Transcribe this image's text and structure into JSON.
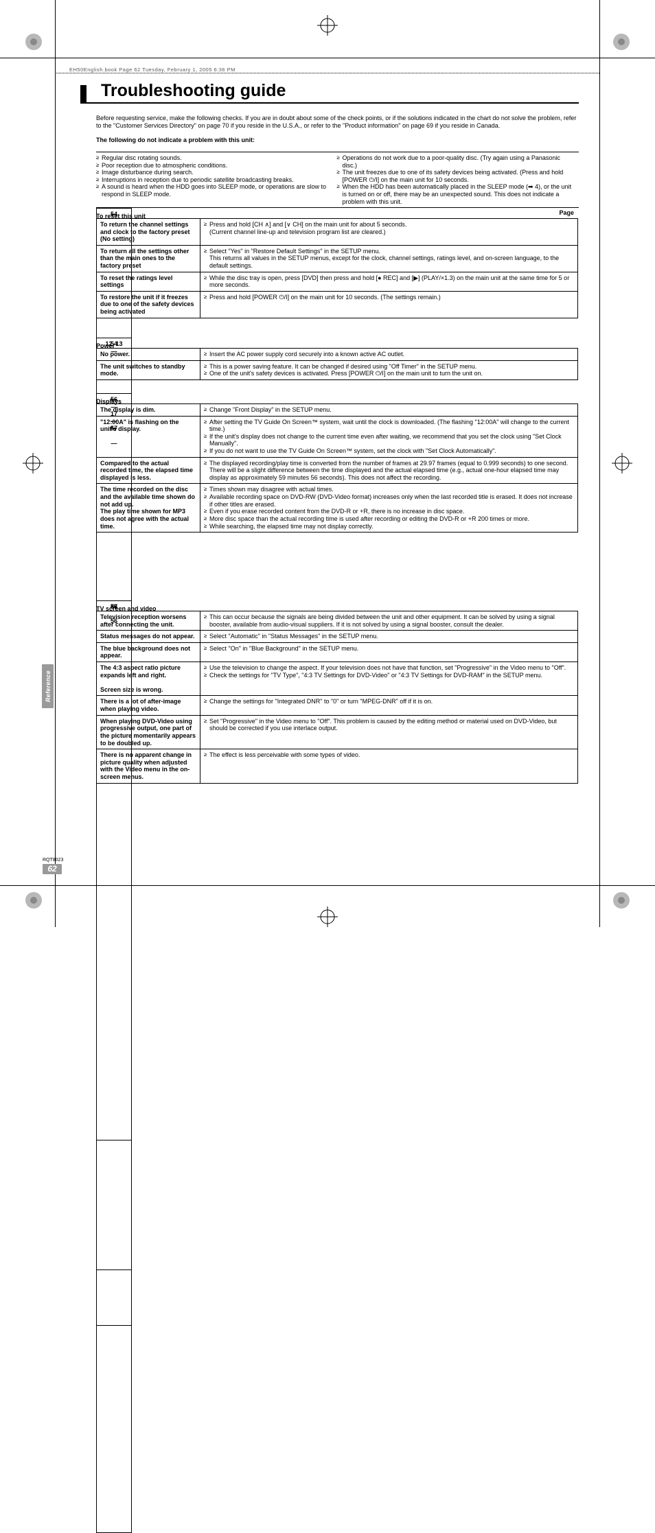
{
  "meta": {
    "headerLine": "EH50English.book  Page 62  Tuesday, February 1, 2005  6:36 PM",
    "title": "Troubleshooting guide",
    "sideTab": "Reference",
    "rqt": "RQT8023",
    "pageNum": "62"
  },
  "intro": {
    "p1": "Before requesting service, make the following checks. If you are in doubt about some of the check points, or if the solutions indicated in the chart do not solve the problem, refer to the \"Customer Services Directory\" on page 70 if you reside in the U.S.A., or refer to the \"Product information\" on page 69 if you reside in Canada.",
    "subhead": "The following do not indicate a problem with this unit:"
  },
  "notProblems": {
    "left": [
      "Regular disc rotating sounds.",
      "Poor reception due to atmospheric conditions.",
      "Image disturbance during search.",
      "Interruptions in reception due to periodic satellite broadcasting breaks.",
      "A sound is heard when the HDD goes into SLEEP mode, or operations are slow to respond in SLEEP mode."
    ],
    "right": [
      "Operations do not work due to a poor-quality disc. (Try again using a Panasonic disc.)",
      "The unit freezes due to one of its safety devices being activated. (Press and hold [POWER ⏻/I] on the main unit for 10 seconds.",
      "When the HDD has been automatically placed in the SLEEP mode (➡ 4), or the unit is turned on or off, there may be an unexpected sound. This does not indicate a problem with this unit."
    ]
  },
  "resetSection": {
    "title": "To reset this unit",
    "pageLabel": "Page",
    "rows": [
      {
        "symptom": "To return the channel settings and clock to the factory preset (No setting)",
        "actions": [
          "Press and hold [CH ∧] and [∨ CH] on the main unit for about 5 seconds.\n(Current channel line-up and television program list are cleared.)"
        ],
        "page": "—"
      },
      {
        "symptom": "To return all the settings other than the main ones to the factory preset",
        "actions": [
          "Select \"Yes\" in \"Restore Default Settings\" in the SETUP menu.\nThis returns all values in the SETUP menus, except for the clock, channel settings, ratings level, and on-screen language, to the default settings."
        ],
        "page": "54"
      },
      {
        "symptom": "To reset the ratings level settings",
        "actions": [
          "While the disc tray is open, press [DVD] then press and hold [● REC] and [▶] (PLAY/×1.3) on the main unit at the same time for 5 or more seconds."
        ],
        "page": "—"
      },
      {
        "symptom": "To restore the unit if it freezes due to one of the safety devices being activated",
        "actions": [
          "Press and hold [POWER ⏻/I] on the main unit for 10 seconds. (The settings remain.)"
        ],
        "page": "—"
      }
    ]
  },
  "powerSection": {
    "title": "Power",
    "rows": [
      {
        "symptom": "No power.",
        "actions": [
          "Insert the AC power supply cord securely into a known active AC outlet."
        ],
        "page": "12, 13"
      },
      {
        "symptom": "The unit switches to standby mode.",
        "actions": [
          "This is a power saving feature. It can be changed if desired using \"Off Timer\" in the SETUP menu.",
          "One of the unit's safety devices is activated. Press [POWER ⏻/I] on the main unit to turn the unit on."
        ],
        "page": "54\n—"
      }
    ]
  },
  "displaysSection": {
    "title": "Displays",
    "rows": [
      {
        "symptom": "The display is dim.",
        "actions": [
          "Change \"Front Display\" in the SETUP menu."
        ],
        "page": "56"
      },
      {
        "symptom": "\"12:00A\" is flashing on the unit's display.",
        "actions": [
          "After setting the TV Guide On Screen™ system, wait until the clock is downloaded. (The flashing \"12:00A\" will change to the current time.)",
          "If the unit's display does not change to the current time even after waiting, we recommend that you set the clock using \"Set Clock Manually\".",
          "If you do not want to use the TV Guide On Screen™ system, set the clock with \"Set Clock Automatically\"."
        ],
        "page": "—\n\n17\n\n57"
      },
      {
        "symptom": "Compared to the actual recorded time, the elapsed time displayed is less.",
        "actions": [
          "The displayed recording/play time is converted from the number of frames at 29.97 frames (equal to 0.999 seconds) to one second. There will be a slight difference between the time displayed and the actual elapsed time (e.g., actual one-hour elapsed time may display as approximately 59 minutes 56 seconds). This does not affect the recording."
        ],
        "page": "—"
      },
      {
        "symptom": "The time recorded on the disc and the available time shown do not add up.\nThe play time shown for MP3 does not agree with the actual time.",
        "actions": [
          "Times shown may disagree with actual times.",
          "Available recording space on DVD-RW (DVD-Video format) increases only when the last recorded title is erased. It does not increase if other titles are erased.",
          "Even if you erase recorded content from the DVD-R or +R, there is no increase in disc space.",
          "More disc space than the actual recording time is used after recording or editing the DVD-R or +R 200 times or more.",
          "While searching, the elapsed time may not display correctly."
        ],
        "page": "—\n—\n\n—\n—\n\n—"
      }
    ]
  },
  "tvSection": {
    "title": "TV screen and video",
    "rows": [
      {
        "symptom": "Television reception worsens after connecting the unit.",
        "actions": [
          "This can occur because the signals are being divided between the unit and other equipment. It can be solved by using a signal booster, available from audio-visual suppliers. If it is not solved by using a signal booster, consult the dealer."
        ],
        "page": "—"
      },
      {
        "symptom": "Status messages do not appear.",
        "actions": [
          "Select \"Automatic\" in \"Status Messages\" in the SETUP menu."
        ],
        "page": "56"
      },
      {
        "symptom": "The blue background does not appear.",
        "actions": [
          "Select \"On\" in \"Blue Background\" in the SETUP menu."
        ],
        "page": "56"
      },
      {
        "symptom": "The 4:3 aspect ratio picture expands left and right.\n\nScreen size is wrong.",
        "actions": [
          "Use the television to change the aspect. If your television does not have that function, set \"Progressive\" in the Video menu to \"Off\".",
          "Check the settings for \"TV Type\", \"4:3 TV Settings for DVD-Video\" or \"4:3 TV Settings for DVD-RAM\" in the SETUP menu."
        ],
        "page": "37\n\n56"
      },
      {
        "symptom": "There is a lot of after-image when playing video.",
        "actions": [
          "Change the settings for \"Integrated DNR\" to \"0\" or turn \"MPEG-DNR\" off if it is on."
        ],
        "page": "37"
      },
      {
        "symptom": "When playing DVD-Video using progressive output, one part of the picture momentarily appears to be doubled up.",
        "actions": [
          "Set \"Progressive\" in the Video menu to \"Off\". This problem is caused by the editing method or material used on DVD-Video, but should be corrected if you use interlace output."
        ],
        "page": "37"
      },
      {
        "symptom": "There is no apparent change in picture quality when adjusted with the Video menu in the on-screen menus.",
        "actions": [
          "The effect is less perceivable with some types of video."
        ],
        "page": "—"
      }
    ]
  }
}
